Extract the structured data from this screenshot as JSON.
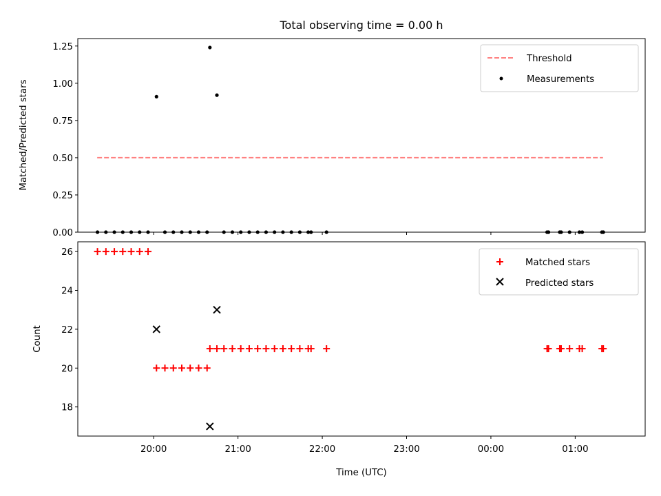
{
  "chart_data": [
    {
      "type": "scatter",
      "title": "Total observing time = 0.00 h",
      "xlabel": "",
      "ylabel": "Matched/Predicted stars",
      "ylim": [
        0,
        1.3
      ],
      "yticks": [
        "0.00",
        "0.25",
        "0.50",
        "0.75",
        "1.00",
        "1.25"
      ],
      "xlim_hours": [
        19.1,
        25.83
      ],
      "threshold": {
        "name": "Threshold",
        "value": 0.5,
        "x_range": [
          19.33,
          25.33
        ],
        "color": "#ff7f7f"
      },
      "series": [
        {
          "name": "Measurements",
          "color": "#000000",
          "x": [
            "19:20",
            "19:26",
            "19:32",
            "19:38",
            "19:44",
            "19:50",
            "19:56",
            "20:02",
            "20:08",
            "20:14",
            "20:20",
            "20:26",
            "20:32",
            "20:38",
            "20:40",
            "20:45",
            "20:50",
            "20:56",
            "21:02",
            "21:08",
            "21:14",
            "21:20",
            "21:26",
            "21:32",
            "21:38",
            "21:44",
            "21:50",
            "21:52",
            "22:03",
            "00:40",
            "00:41",
            "00:49",
            "00:50",
            "00:56",
            "01:03",
            "01:05",
            "01:19",
            "01:20"
          ],
          "y": [
            0,
            0,
            0,
            0,
            0,
            0,
            0,
            0.91,
            0,
            0,
            0,
            0,
            0,
            0,
            1.24,
            0.92,
            0,
            0,
            0,
            0,
            0,
            0,
            0,
            0,
            0,
            0,
            0,
            0,
            0,
            0,
            0,
            0,
            0,
            0,
            0,
            0,
            0,
            0
          ]
        }
      ]
    },
    {
      "type": "scatter",
      "title": "",
      "xlabel": "Time (UTC)",
      "ylabel": "Count",
      "ylim": [
        16.5,
        26.5
      ],
      "yticks": [
        "18",
        "20",
        "22",
        "24",
        "26"
      ],
      "xticks": [
        "20:00",
        "21:00",
        "22:00",
        "23:00",
        "00:00",
        "01:00"
      ],
      "xlim_hours": [
        19.1,
        25.83
      ],
      "series": [
        {
          "name": "Matched stars",
          "marker": "+",
          "color": "#ff0000",
          "x": [
            "19:20",
            "19:26",
            "19:32",
            "19:38",
            "19:44",
            "19:50",
            "19:56",
            "20:02",
            "20:08",
            "20:14",
            "20:20",
            "20:26",
            "20:32",
            "20:38",
            "20:40",
            "20:45",
            "20:50",
            "20:56",
            "21:02",
            "21:08",
            "21:14",
            "21:20",
            "21:26",
            "21:32",
            "21:38",
            "21:44",
            "21:50",
            "21:52",
            "22:03",
            "00:40",
            "00:41",
            "00:49",
            "00:50",
            "00:56",
            "01:03",
            "01:05",
            "01:19",
            "01:20"
          ],
          "y": [
            26,
            26,
            26,
            26,
            26,
            26,
            26,
            20,
            20,
            20,
            20,
            20,
            20,
            20,
            21,
            21,
            21,
            21,
            21,
            21,
            21,
            21,
            21,
            21,
            21,
            21,
            21,
            21,
            21,
            21,
            21,
            21,
            21,
            21,
            21,
            21,
            21,
            21
          ]
        },
        {
          "name": "Predicted stars",
          "marker": "x",
          "color": "#000000",
          "x": [
            "20:02",
            "20:40",
            "20:45"
          ],
          "y": [
            22,
            17,
            23
          ]
        }
      ]
    }
  ]
}
